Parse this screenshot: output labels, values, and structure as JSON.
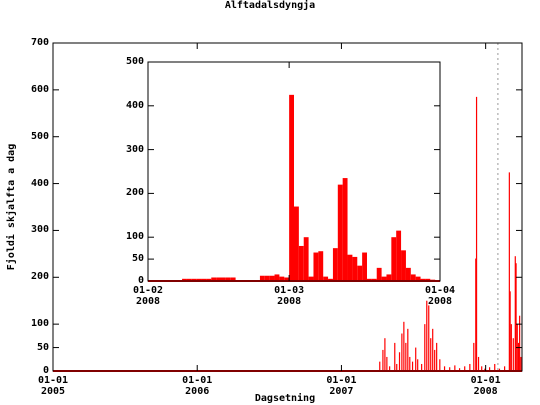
{
  "title": "Alftadalsdyngja",
  "chart_data": [
    {
      "type": "impulse",
      "ylabel": "Fjoldi skjalfta a dag",
      "xlabel": "Dagsetning",
      "color": "#ff0000",
      "x": [
        827,
        835,
        840,
        845,
        852,
        865,
        870,
        877,
        883,
        888,
        893,
        898,
        903,
        910,
        918,
        923,
        933,
        941,
        946,
        951,
        956,
        961,
        966,
        971,
        979,
        991,
        1004,
        1017,
        1029,
        1042,
        1055,
        1065,
        1070,
        1072,
        1077,
        1085,
        1093,
        1105,
        1118,
        1130,
        1143,
        1155,
        1157,
        1160,
        1165,
        1170,
        1172,
        1175,
        1178,
        1181,
        1184
      ],
      "values": [
        20,
        45,
        70,
        30,
        10,
        60,
        15,
        40,
        80,
        105,
        60,
        90,
        30,
        20,
        50,
        25,
        15,
        100,
        150,
        140,
        70,
        90,
        45,
        60,
        25,
        10,
        8,
        12,
        6,
        10,
        15,
        60,
        240,
        585,
        30,
        10,
        5,
        8,
        15,
        5,
        10,
        424,
        170,
        100,
        70,
        245,
        230,
        100,
        60,
        118,
        30
      ],
      "xlim": [
        0,
        1187
      ],
      "ylim": [
        0,
        700
      ],
      "xticks": [
        {
          "value": 0,
          "label": "01-01\n2005"
        },
        {
          "value": 365,
          "label": "01-01\n2006"
        },
        {
          "value": 730,
          "label": "01-01\n2007"
        },
        {
          "value": 1095,
          "label": "01-01\n2008"
        }
      ],
      "yticks": [
        0,
        50,
        100,
        200,
        300,
        400,
        500,
        600,
        700
      ],
      "vlines": [
        1126
      ]
    },
    {
      "type": "bar",
      "color": "#ff0000",
      "x": [
        32,
        33,
        34,
        35,
        36,
        37,
        38,
        39,
        40,
        41,
        42,
        43,
        44,
        45,
        46,
        47,
        48,
        49,
        50,
        51,
        52,
        53,
        54,
        55,
        56,
        57,
        58,
        59,
        60,
        61,
        62,
        63,
        64,
        65,
        66,
        67,
        68,
        69,
        70,
        71,
        72,
        73,
        74,
        75,
        76,
        77,
        78,
        79,
        80,
        81,
        82,
        83,
        84,
        85,
        86,
        87,
        88,
        89,
        90
      ],
      "values": [
        1,
        1,
        1,
        1,
        1,
        1,
        1,
        5,
        5,
        5,
        5,
        5,
        5,
        8,
        8,
        8,
        8,
        8,
        2,
        2,
        2,
        2,
        2,
        12,
        12,
        12,
        15,
        10,
        8,
        425,
        170,
        80,
        100,
        10,
        65,
        68,
        10,
        5,
        75,
        220,
        235,
        60,
        55,
        35,
        65,
        5,
        5,
        30,
        10,
        15,
        100,
        115,
        70,
        30,
        15,
        10,
        5,
        5,
        3
      ],
      "xlim": [
        32,
        92
      ],
      "ylim": [
        0,
        500
      ],
      "xticks": [
        {
          "value": 32,
          "label": "01-02\n2008"
        },
        {
          "value": 61,
          "label": "01-03\n2008"
        },
        {
          "value": 92,
          "label": "01-04\n2008"
        }
      ],
      "yticks": [
        0,
        50,
        100,
        200,
        300,
        400,
        500
      ]
    }
  ]
}
